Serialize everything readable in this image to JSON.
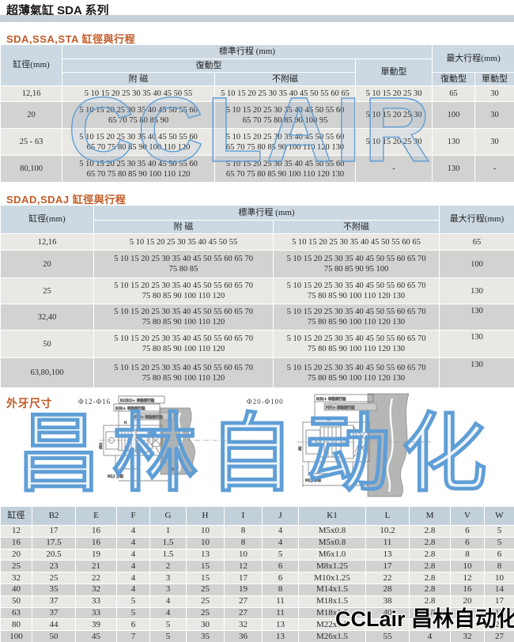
{
  "page_title": "超薄氣缸 SDA 系列",
  "watermarks": {
    "big_blue_latin": "CCLAIR",
    "big_blue_cjk": "昌林自动化",
    "bottom_black": "CCLair 昌林自动化"
  },
  "colors": {
    "accent_title": "#c35a26",
    "header_blue": "#ccd9e2",
    "band": "#c6d2da",
    "row_light": "#eae8e4",
    "row_dark": "#d2d2d0",
    "watermark_blue": "#5f9ed6"
  },
  "section1": {
    "title": "SDA,SSA,STA 缸徑與行程",
    "header": {
      "bore": "缸徑(mm)",
      "std": "標準行程 (mm)",
      "double": "復動型",
      "single": "單動型",
      "mag": "附 磁",
      "nomag": "不附磁",
      "max": "最大行程(mm)",
      "max_double": "復動型",
      "max_single": "單動型"
    },
    "rows": [
      {
        "bore": "12,16",
        "mag": [
          "5 10 15 20 25 30 35 40 45 50 55"
        ],
        "nomag": [
          "5 10 15 20 25 30 35 40 45 50 55 60 65"
        ],
        "single": "5 10 15 20 25 30",
        "max_double": "65",
        "max_single": "30"
      },
      {
        "bore": "20",
        "mag": [
          "5 10 15 20 25 30 35 40 45 50 55 60",
          "65 70 75 80 85 90"
        ],
        "nomag": [
          "5 10 15 20 25 30 35 40 45 50 55 60",
          "65 70 75 80 85 90 100 95"
        ],
        "single": "5 10 15 20 25 30",
        "max_double": "100",
        "max_single": "30"
      },
      {
        "bore": "25 - 63",
        "mag": [
          "5 10 15 20 25 30 35 40 45 50 55 60",
          "65 70 75 80 85 90 100 110 120"
        ],
        "nomag": [
          "5 10 15 20 25 30 35 40 45 50 55 60",
          "65 70 75 80 85 90 100 110 120 130"
        ],
        "single": "5 10 15 20 25 30",
        "max_double": "130",
        "max_single": "30"
      },
      {
        "bore": "80,100",
        "mag": [
          "5 10 15 20 25 30 35 40 45 50 55 60",
          "65 70 75 80 85 90 100 110 120"
        ],
        "nomag": [
          "5 10 15 20 25 30 35 40 45 50 55 60",
          "65 70 75 80 85 90 100 110 120 130"
        ],
        "single": "-",
        "max_double": "130",
        "max_single": "-"
      }
    ]
  },
  "section2": {
    "title": "SDAD,SDAJ 缸徑與行程",
    "header": {
      "bore": "缸徑(mm)",
      "std": "標準行程 (mm)",
      "mag": "附 磁",
      "nomag": "不附磁",
      "max": "最大行程(mm)"
    },
    "rows": [
      {
        "bore": "12,16",
        "mag": [
          "5 10 15 20 25 30 35 40 45 50 55"
        ],
        "nomag": [
          "5 10 15 20 25 30 35 40 45 50 55 60 65"
        ],
        "max": "65"
      },
      {
        "bore": "20",
        "mag": [
          "5 10 15 20 25 30 35 40 45 50 55 60 65 70",
          "75 80 85"
        ],
        "nomag": [
          "5 10 15 20 25 30 35 40 45 50 55 60 65 70",
          "75 80 85 90 95 100"
        ],
        "max": "100"
      },
      {
        "bore": "25",
        "mag": [
          "5 10 15 20 25 30 35 40 45 50 55 60 65 70",
          "75 80 85 90 100 110 120"
        ],
        "nomag": [
          "5 10 15 20 25 30 35 40 45 50 55 60 65 70",
          "75 80 85 90 100 110 120 130"
        ],
        "max": "130"
      },
      {
        "bore": "32,40",
        "mag": [
          "5 10 15 20 25 30 35 40 45 50 55 60 65 70",
          "75 80 85 90 100 110 120"
        ],
        "nomag": [
          "5 10 15 20 25 30 35 40 45 50 55 60 65 70",
          "75 80 85 90 100 110 120 130"
        ],
        "max": "130"
      },
      {
        "bore": "50",
        "mag": [
          "5 10 15 20 25 30 35 40 45 50 55 60 65 70",
          "75 80 85 90 100 110 120"
        ],
        "nomag": [
          "5 10 15 20 25 30 35 40 45 50 55 60 65 70",
          "75 80 85 90 100 110 120 130"
        ],
        "max": "130"
      },
      {
        "bore": "63,80,100",
        "mag": [
          "5 10 15 20 25 30 35 40 45 50 55 60 65 70",
          "75 80 85 90 100 110 120"
        ],
        "nomag": [
          "5 10 15 20 25 30 35 40 45 50 55 60 65 70",
          "75 80 85 90 100 110 120 130"
        ],
        "max": "130"
      }
    ]
  },
  "section3": {
    "title": "外牙尺寸",
    "drawings": {
      "left_range": "Φ12-Φ16",
      "right_range": "Φ20-Φ100",
      "left_note1": "B2(B2)+ 單動型行程",
      "left_note2": "B(B)+ 單動型行程",
      "left_note3": "F2F+ 單動型行程",
      "left_thread": "M12 牙距",
      "left_dim_m": "M",
      "left_dim_h": "H",
      "right_note1": "B(B)+ 單動型行程",
      "right_note2": "F(F)+ 單動型行程",
      "right_thread": "M22 牙距",
      "right_dim_h": "H",
      "dim_e": "ØE",
      "dim_b2": "ØB2"
    },
    "table": {
      "headers": [
        "缸徑",
        "B2",
        "E",
        "F",
        "G",
        "H",
        "I",
        "J",
        "K1",
        "L",
        "M",
        "V",
        "W"
      ],
      "rows": [
        [
          "12",
          "17",
          "16",
          "4",
          "1",
          "10",
          "8",
          "4",
          "M5x0.8",
          "10.2",
          "2.8",
          "6",
          "5"
        ],
        [
          "16",
          "17.5",
          "16",
          "4",
          "1.5",
          "10",
          "8",
          "4",
          "M5x0.8",
          "11",
          "2.8",
          "6",
          "5"
        ],
        [
          "20",
          "20.5",
          "19",
          "4",
          "1.5",
          "13",
          "10",
          "5",
          "M6x1.0",
          "13",
          "2.8",
          "8",
          "6"
        ],
        [
          "25",
          "23",
          "21",
          "4",
          "2",
          "15",
          "12",
          "6",
          "M8x1.25",
          "17",
          "2.8",
          "10",
          "8"
        ],
        [
          "32",
          "25",
          "22",
          "4",
          "3",
          "15",
          "17",
          "6",
          "M10x1.25",
          "22",
          "2.8",
          "12",
          "10"
        ],
        [
          "40",
          "35",
          "32",
          "4",
          "3",
          "25",
          "19",
          "8",
          "M14x1.5",
          "28",
          "2.8",
          "16",
          "14"
        ],
        [
          "50",
          "37",
          "33",
          "5",
          "4",
          "25",
          "27",
          "11",
          "M18x1.5",
          "38",
          "2.8",
          "20",
          "17"
        ],
        [
          "63",
          "37",
          "33",
          "5",
          "4",
          "25",
          "27",
          "11",
          "M18x1.5",
          "40",
          "2.8",
          "20",
          "17"
        ],
        [
          "80",
          "44",
          "39",
          "6",
          "5",
          "30",
          "32",
          "13",
          "M22x1.5",
          "45",
          "",
          "",
          "22"
        ],
        [
          "100",
          "50",
          "45",
          "7",
          "5",
          "35",
          "36",
          "13",
          "M26x1.5",
          "55",
          "4",
          "32",
          "27"
        ]
      ]
    }
  }
}
